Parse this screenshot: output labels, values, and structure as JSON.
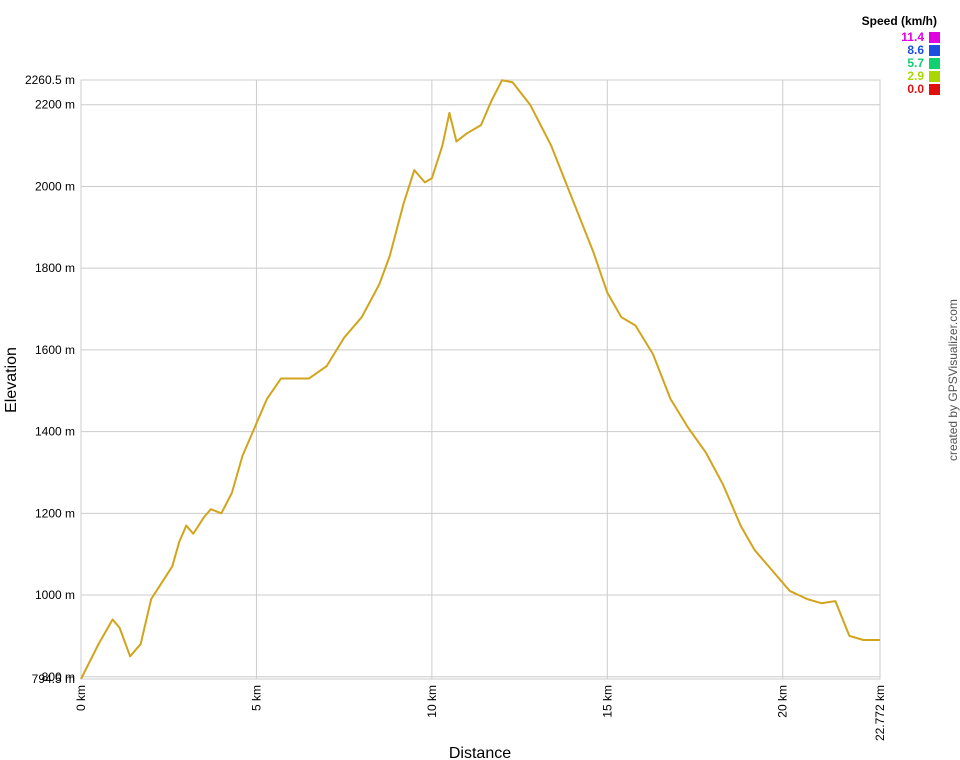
{
  "chart_data": {
    "type": "line",
    "x_label": "Distance",
    "y_label": "Elevation",
    "credit": "created by GPSVisualizer.com",
    "x": [
      0,
      0.5,
      0.9,
      1.1,
      1.4,
      1.7,
      2.0,
      2.3,
      2.6,
      2.8,
      3.0,
      3.2,
      3.5,
      3.7,
      4.0,
      4.3,
      4.6,
      5.0,
      5.3,
      5.7,
      6.0,
      6.5,
      7.0,
      7.5,
      8.0,
      8.5,
      8.8,
      9.2,
      9.5,
      9.8,
      10.0,
      10.3,
      10.5,
      10.7,
      11.0,
      11.4,
      11.7,
      12.0,
      12.3,
      12.8,
      13.4,
      14.0,
      14.6,
      15.0,
      15.4,
      15.8,
      16.3,
      16.8,
      17.3,
      17.8,
      18.3,
      18.8,
      19.2,
      19.7,
      20.2,
      20.7,
      21.1,
      21.5,
      21.9,
      22.3,
      22.772
    ],
    "series": [
      {
        "color": "#d2a41c",
        "values": [
          794.5,
          880,
          940,
          920,
          850,
          880,
          990,
          1030,
          1070,
          1130,
          1170,
          1150,
          1190,
          1210,
          1200,
          1250,
          1340,
          1420,
          1480,
          1530,
          1530,
          1530,
          1560,
          1630,
          1680,
          1760,
          1830,
          1960,
          2040,
          2010,
          2020,
          2100,
          2180,
          2110,
          2130,
          2150,
          2210,
          2260,
          2255,
          2200,
          2100,
          1970,
          1840,
          1740,
          1680,
          1660,
          1590,
          1480,
          1410,
          1350,
          1270,
          1170,
          1110,
          1060,
          1010,
          990,
          980,
          985,
          900,
          890,
          890
        ]
      }
    ],
    "xlim": [
      0,
      22.772
    ],
    "ylim": [
      794.5,
      2260.5
    ],
    "xticks": [
      {
        "value": 0,
        "label": "0 km"
      },
      {
        "value": 5,
        "label": "5 km"
      },
      {
        "value": 10,
        "label": "10 km"
      },
      {
        "value": 15,
        "label": "15 km"
      },
      {
        "value": 20,
        "label": "20 km"
      },
      {
        "value": 22.772,
        "label": "22.772 km"
      }
    ],
    "yticks": [
      {
        "value": 794.5,
        "label": "794.5 m"
      },
      {
        "value": 800,
        "label": "800 m"
      },
      {
        "value": 1000,
        "label": "1000 m"
      },
      {
        "value": 1200,
        "label": "1200 m"
      },
      {
        "value": 1400,
        "label": "1400 m"
      },
      {
        "value": 1600,
        "label": "1600 m"
      },
      {
        "value": 1800,
        "label": "1800 m"
      },
      {
        "value": 2000,
        "label": "2000 m"
      },
      {
        "value": 2200,
        "label": "2200 m"
      },
      {
        "value": 2260.5,
        "label": "2260.5 m"
      }
    ],
    "grid": true,
    "color_scale": {
      "title": "Speed (km/h)",
      "values": [
        11.4,
        8.6,
        5.7,
        2.9,
        0
      ],
      "value_labels": [
        "11.4",
        "8.6",
        "5.7",
        "2.9",
        "0.0"
      ],
      "colors": [
        "#e000e0",
        "#1a4fe0",
        "#10d070",
        "#a8d800",
        "#e01010"
      ]
    }
  }
}
